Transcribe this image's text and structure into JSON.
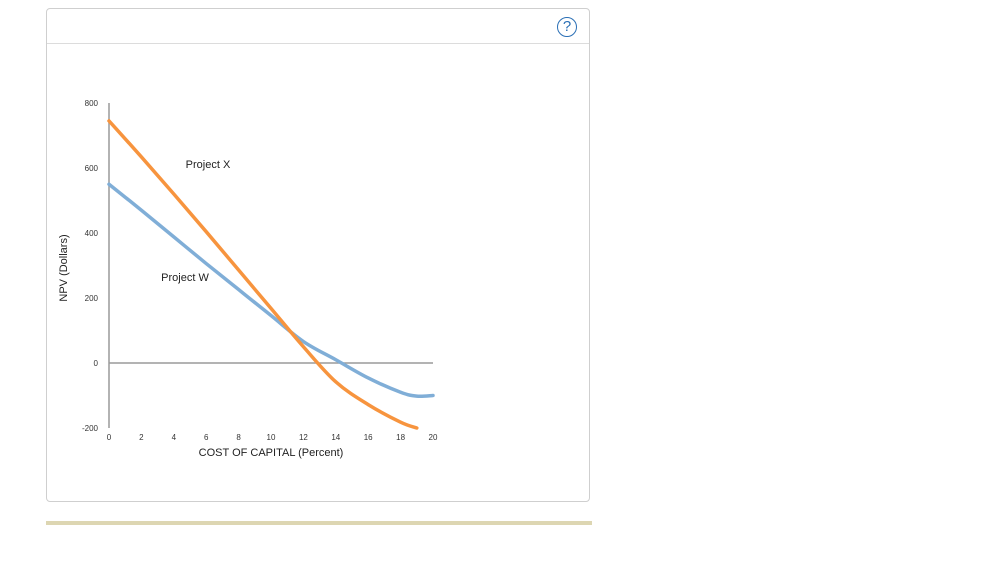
{
  "help": {
    "label": "?"
  },
  "colors": {
    "project_x": "#f7943e",
    "project_w": "#80aed7",
    "axis": "#9a9a9a",
    "accent_bar": "#ddd6b2",
    "help": "#2a6fb5"
  },
  "chart_data": {
    "type": "line",
    "xlabel": "COST OF CAPITAL (Percent)",
    "ylabel": "NPV (Dollars)",
    "xlim": [
      0,
      20
    ],
    "ylim": [
      -200,
      800
    ],
    "x_ticks": [
      "0",
      "2",
      "4",
      "6",
      "8",
      "10",
      "12",
      "14",
      "16",
      "18",
      "20"
    ],
    "y_ticks": [
      "800",
      "600",
      "400",
      "200",
      "0",
      "-200"
    ],
    "grid": false,
    "series": [
      {
        "name": "Project X",
        "color": "#f7943e",
        "x": [
          0,
          2,
          4,
          6,
          8,
          10,
          12,
          14,
          16,
          18,
          19
        ],
        "y": [
          745,
          634,
          520,
          404,
          286,
          168,
          50,
          -58,
          -128,
          -182,
          -200
        ]
      },
      {
        "name": "Project W",
        "color": "#80aed7",
        "x": [
          0,
          2,
          4,
          6,
          8,
          10,
          12,
          14,
          16,
          18,
          19,
          20
        ],
        "y": [
          550,
          470,
          388,
          306,
          226,
          146,
          66,
          10,
          -46,
          -90,
          -102,
          -100
        ]
      }
    ]
  }
}
